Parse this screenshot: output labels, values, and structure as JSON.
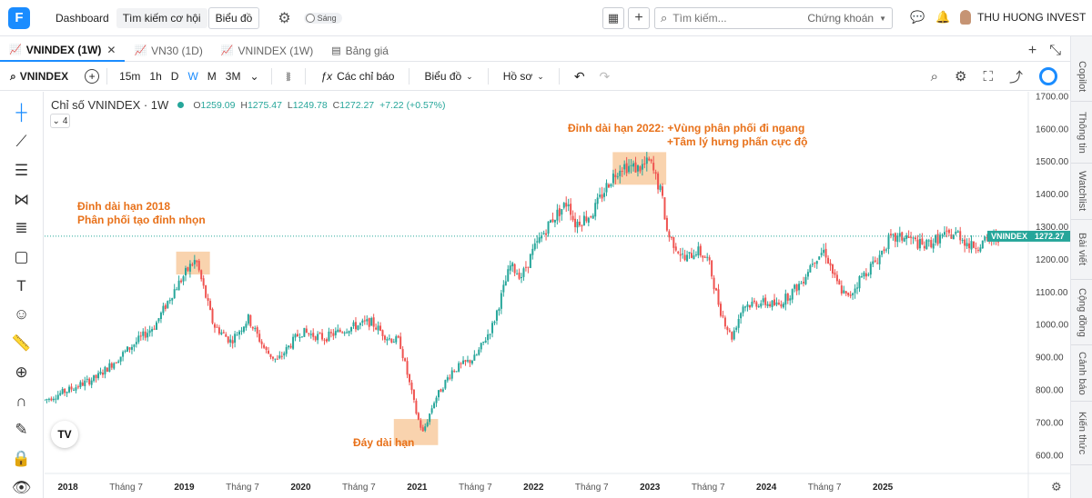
{
  "app": {
    "nav": {
      "dashboard": "Dashboard",
      "screener": "Tìm kiếm cơ hội",
      "chart": "Biểu đồ"
    },
    "theme_label": "Sáng",
    "search": {
      "placeholder": "Tìm kiếm...",
      "category": "Chứng khoán"
    },
    "user_name": "THU HUONG INVEST"
  },
  "tabs": [
    {
      "label": "VNINDEX (1W)",
      "active": true
    },
    {
      "label": "VN30 (1D)",
      "active": false
    },
    {
      "label": "VNINDEX (1W)",
      "active": false
    },
    {
      "label": "Bảng giá",
      "active": false
    }
  ],
  "toolbar": {
    "symbol": "VNINDEX",
    "timeframes": [
      "15m",
      "1h",
      "D",
      "W",
      "M",
      "3M"
    ],
    "active_timeframe": "W",
    "indicators": "Các chỉ báo",
    "chart_type": "Biểu đồ",
    "profile": "Hồ sơ"
  },
  "legend": {
    "title": "Chỉ số VNINDEX · 1W",
    "open_label": "O",
    "open": "1259.09",
    "high_label": "H",
    "high": "1275.47",
    "low_label": "L",
    "low": "1249.78",
    "close_label": "C",
    "close": "1272.27",
    "change": "+7.22 (+0.57%)",
    "collapsed_count": "4"
  },
  "right_sidebar": [
    "Copilot",
    "Thông tin",
    "Watchlist",
    "Bài viết",
    "Cộng đồng",
    "Cảnh báo",
    "Kiến thức"
  ],
  "chart_data": {
    "type": "candlestick",
    "symbol": "VNINDEX",
    "interval": "1W",
    "y_ticks": [
      600,
      700,
      800,
      900,
      1000,
      1100,
      1200,
      1300,
      1400,
      1500,
      1600,
      1700
    ],
    "y_tick_labels": [
      "600.00",
      "700.00",
      "800.00",
      "900.00",
      "1000.00",
      "1100.00",
      "1200.00",
      "1300.00",
      "1400.00",
      "1500.00",
      "1600.00",
      "1700.00"
    ],
    "ylim": [
      545,
      1715
    ],
    "x_labels": [
      "2018",
      "Tháng 7",
      "2019",
      "Tháng 7",
      "2020",
      "Tháng 7",
      "2021",
      "Tháng 7",
      "2022",
      "Tháng 7",
      "2023",
      "Tháng 7",
      "2024",
      "Tháng 7",
      "2025"
    ],
    "x_label_bold": [
      true,
      false,
      true,
      false,
      true,
      false,
      true,
      false,
      true,
      false,
      true,
      false,
      true,
      false,
      true
    ],
    "x_range": [
      2017.0,
      2025.45
    ],
    "price_label": "VNINDEX",
    "price_value": "1272.27",
    "last_price": 1272.27,
    "colors": {
      "up": "#26a69a",
      "down": "#ef5350",
      "annotation": "#e8711a",
      "highlight": "#f8cba0"
    },
    "anchors": [
      [
        2017.0,
        770
      ],
      [
        2017.2,
        800
      ],
      [
        2017.45,
        840
      ],
      [
        2017.7,
        920
      ],
      [
        2017.95,
        1000
      ],
      [
        2018.1,
        1100
      ],
      [
        2018.25,
        1180
      ],
      [
        2018.3,
        1200
      ],
      [
        2018.45,
        1000
      ],
      [
        2018.6,
        950
      ],
      [
        2018.75,
        1020
      ],
      [
        2018.9,
        920
      ],
      [
        2019.0,
        890
      ],
      [
        2019.2,
        980
      ],
      [
        2019.4,
        960
      ],
      [
        2019.6,
        990
      ],
      [
        2019.8,
        1010
      ],
      [
        2019.95,
        960
      ],
      [
        2020.05,
        950
      ],
      [
        2020.2,
        720
      ],
      [
        2020.25,
        670
      ],
      [
        2020.35,
        770
      ],
      [
        2020.5,
        860
      ],
      [
        2020.7,
        900
      ],
      [
        2020.85,
        1000
      ],
      [
        2021.0,
        1180
      ],
      [
        2021.1,
        1150
      ],
      [
        2021.2,
        1230
      ],
      [
        2021.35,
        1320
      ],
      [
        2021.5,
        1380
      ],
      [
        2021.55,
        1310
      ],
      [
        2021.7,
        1340
      ],
      [
        2021.85,
        1440
      ],
      [
        2021.95,
        1490
      ],
      [
        2022.1,
        1480
      ],
      [
        2022.2,
        1500
      ],
      [
        2022.3,
        1400
      ],
      [
        2022.35,
        1280
      ],
      [
        2022.5,
        1200
      ],
      [
        2022.6,
        1230
      ],
      [
        2022.7,
        1200
      ],
      [
        2022.8,
        1050
      ],
      [
        2022.9,
        960
      ],
      [
        2023.0,
        1060
      ],
      [
        2023.15,
        1070
      ],
      [
        2023.3,
        1060
      ],
      [
        2023.5,
        1130
      ],
      [
        2023.6,
        1200
      ],
      [
        2023.7,
        1230
      ],
      [
        2023.8,
        1130
      ],
      [
        2023.9,
        1080
      ],
      [
        2024.0,
        1140
      ],
      [
        2024.15,
        1200
      ],
      [
        2024.25,
        1260
      ],
      [
        2024.4,
        1270
      ],
      [
        2024.55,
        1240
      ],
      [
        2024.7,
        1270
      ],
      [
        2024.85,
        1280
      ],
      [
        2024.95,
        1240
      ],
      [
        2025.05,
        1250
      ],
      [
        2025.2,
        1272
      ]
    ],
    "annotations": [
      {
        "text_lines": [
          "Đỉnh dài hạn 2018",
          "Phân phối tạo đỉnh nhọn"
        ],
        "box": {
          "x0": 2018.13,
          "x1": 2018.42,
          "y0": 1155,
          "y1": 1225
        }
      },
      {
        "text_lines": [
          "Đáy dài hạn"
        ],
        "box": {
          "x0": 2020.0,
          "x1": 2020.38,
          "y0": 632,
          "y1": 712
        }
      },
      {
        "text_lines": [
          "Đỉnh dài hạn 2022: +Vùng phân phối đi ngang",
          "+Tâm lý hưng phấn cực độ"
        ],
        "box": {
          "x0": 2021.88,
          "x1": 2022.34,
          "y0": 1430,
          "y1": 1530
        }
      }
    ]
  }
}
